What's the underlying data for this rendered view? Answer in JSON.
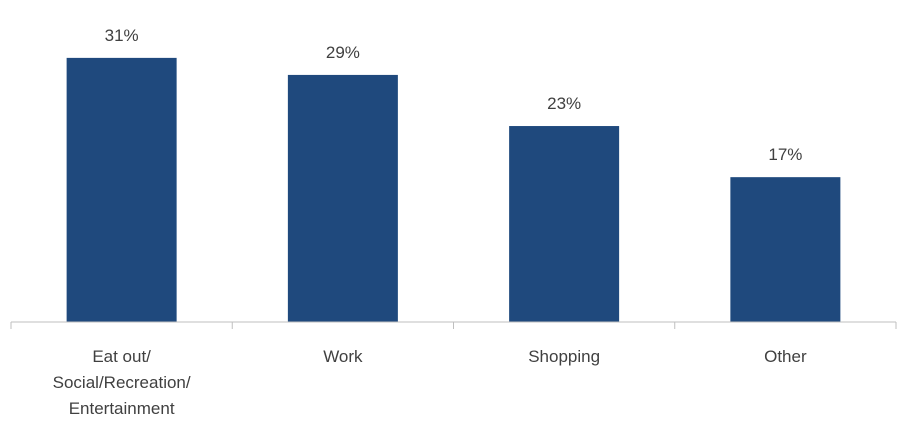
{
  "chart_data": {
    "type": "bar",
    "categories": [
      [
        "Eat out/",
        "Social/Recreation/",
        "Entertainment"
      ],
      [
        "Work"
      ],
      [
        "Shopping"
      ],
      [
        "Other"
      ]
    ],
    "values": [
      31,
      29,
      23,
      17
    ],
    "value_labels": [
      "31%",
      "29%",
      "23%",
      "17%"
    ],
    "bar_color": "#1F497D",
    "axis_color": "#BFBFBF",
    "text_color": "#404040",
    "title": "",
    "xlabel": "",
    "ylabel": "",
    "ylim": [
      0,
      35
    ],
    "grid": false,
    "legend": "none"
  }
}
